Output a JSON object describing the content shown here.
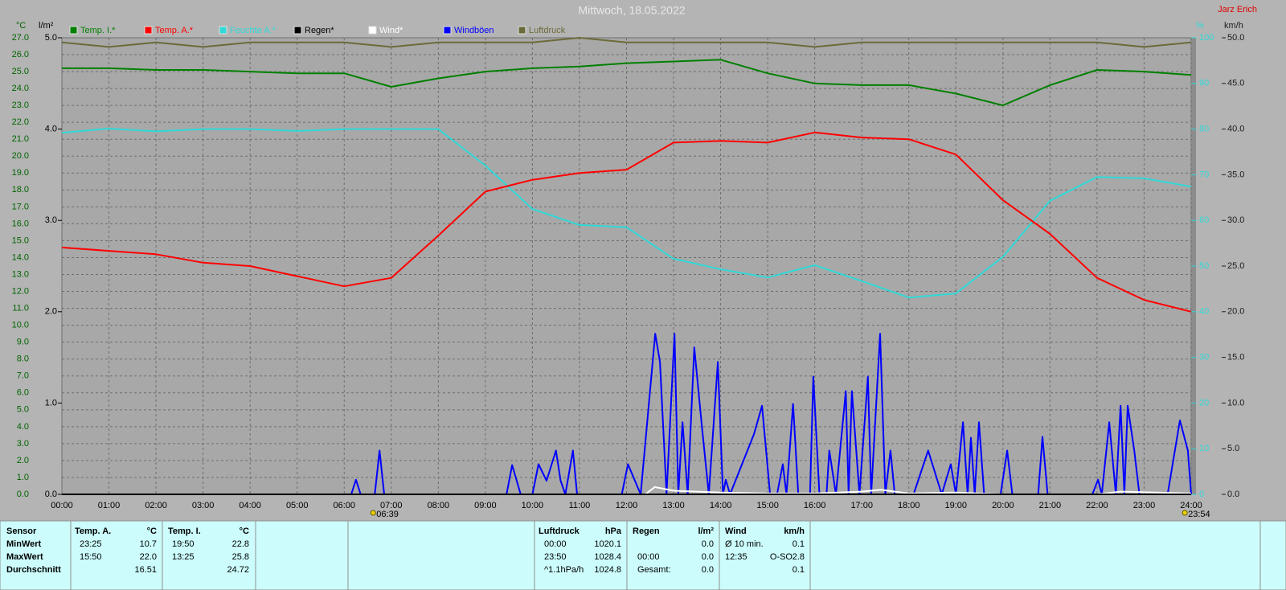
{
  "chart_data": {
    "type": "line",
    "title": "Mittwoch, 18.05.2022",
    "author": "Jarz Erich",
    "y_label": "°C",
    "y3_label": "l/m²",
    "y2_label": "%",
    "y4_label": "km/h",
    "xlim": [
      0,
      24
    ],
    "xticks": [
      {
        "value": 0,
        "label": "00:00"
      },
      {
        "value": 1,
        "label": "01:00"
      },
      {
        "value": 2,
        "label": "02:00"
      },
      {
        "value": 3,
        "label": "03:00"
      },
      {
        "value": 4,
        "label": "04:00"
      },
      {
        "value": 5,
        "label": "05:00"
      },
      {
        "value": 6,
        "label": "06:00"
      },
      {
        "value": 7,
        "label": "07:00"
      },
      {
        "value": 8,
        "label": "08:00"
      },
      {
        "value": 9,
        "label": "09:00"
      },
      {
        "value": 10,
        "label": "10:00"
      },
      {
        "value": 11,
        "label": "11:00"
      },
      {
        "value": 12,
        "label": "12:00"
      },
      {
        "value": 13,
        "label": "13:00"
      },
      {
        "value": 14,
        "label": "14:00"
      },
      {
        "value": 15,
        "label": "15:00"
      },
      {
        "value": 16,
        "label": "16:00"
      },
      {
        "value": 17,
        "label": "17:00"
      },
      {
        "value": 18,
        "label": "18:00"
      },
      {
        "value": 19,
        "label": "19:00"
      },
      {
        "value": 20,
        "label": "20:00"
      },
      {
        "value": 21,
        "label": "21:00"
      },
      {
        "value": 22,
        "label": "22:00"
      },
      {
        "value": 23,
        "label": "23:00"
      },
      {
        "value": 24,
        "label": "24:00"
      }
    ],
    "ylim": [
      0,
      27
    ],
    "yticks": [
      {
        "value": 0,
        "label": "0.0"
      },
      {
        "value": 1,
        "label": "1.0"
      },
      {
        "value": 2,
        "label": "2.0"
      },
      {
        "value": 3,
        "label": "3.0"
      },
      {
        "value": 4,
        "label": "4.0"
      },
      {
        "value": 5,
        "label": "5.0"
      },
      {
        "value": 6,
        "label": "6.0"
      },
      {
        "value": 7,
        "label": "7.0"
      },
      {
        "value": 8,
        "label": "8.0"
      },
      {
        "value": 9,
        "label": "9.0"
      },
      {
        "value": 10,
        "label": "10.0"
      },
      {
        "value": 11,
        "label": "11.0"
      },
      {
        "value": 12,
        "label": "12.0"
      },
      {
        "value": 13,
        "label": "13.0"
      },
      {
        "value": 14,
        "label": "14.0"
      },
      {
        "value": 15,
        "label": "15.0"
      },
      {
        "value": 16,
        "label": "16.0"
      },
      {
        "value": 17,
        "label": "17.0"
      },
      {
        "value": 18,
        "label": "18.0"
      },
      {
        "value": 19,
        "label": "19.0"
      },
      {
        "value": 20,
        "label": "20.0"
      },
      {
        "value": 21,
        "label": "21.0"
      },
      {
        "value": 22,
        "label": "22.0"
      },
      {
        "value": 23,
        "label": "23.0"
      },
      {
        "value": 24,
        "label": "24.0"
      },
      {
        "value": 25,
        "label": "25.0"
      },
      {
        "value": 26,
        "label": "26.0"
      },
      {
        "value": 27,
        "label": "27.0"
      }
    ],
    "y3lim": [
      0,
      5
    ],
    "y3ticks": [
      {
        "value": 0,
        "label": "0.0"
      },
      {
        "value": 1,
        "label": "1.0"
      },
      {
        "value": 2,
        "label": "2.0"
      },
      {
        "value": 3,
        "label": "3.0"
      },
      {
        "value": 4,
        "label": "4.0"
      },
      {
        "value": 5,
        "label": "5.0"
      }
    ],
    "y2lim": [
      0,
      100
    ],
    "y2ticks": [
      0,
      10,
      20,
      30,
      40,
      50,
      60,
      70,
      80,
      90,
      100
    ],
    "y4lim": [
      0,
      50
    ],
    "y4ticks": [
      {
        "value": 0,
        "label": "0.0"
      },
      {
        "value": 5,
        "label": "5.0"
      },
      {
        "value": 10,
        "label": "10.0"
      },
      {
        "value": 15,
        "label": "15.0"
      },
      {
        "value": 20,
        "label": "20.0"
      },
      {
        "value": 25,
        "label": "25.0"
      },
      {
        "value": 30,
        "label": "30.0"
      },
      {
        "value": 35,
        "label": "35.0"
      },
      {
        "value": 40,
        "label": "40.0"
      },
      {
        "value": 45,
        "label": "45.0"
      },
      {
        "value": 50,
        "label": "50.0"
      }
    ],
    "grid": true,
    "x": [
      0,
      1,
      2,
      3,
      4,
      5,
      6,
      7,
      8,
      9,
      10,
      11,
      12,
      13,
      14,
      15,
      16,
      17,
      18,
      19,
      20,
      21,
      22,
      23,
      24
    ],
    "series": [
      {
        "name": "Temp. I.*",
        "color": "#008000",
        "axis": "y",
        "values": [
          25.2,
          25.2,
          25.1,
          25.1,
          25.0,
          24.9,
          24.9,
          24.1,
          24.6,
          25.0,
          25.2,
          25.3,
          25.5,
          25.6,
          25.7,
          24.9,
          24.3,
          24.2,
          24.2,
          23.7,
          23.0,
          24.2,
          25.1,
          25.0,
          24.8
        ]
      },
      {
        "name": "Temp. A.*",
        "color": "#ff0000",
        "axis": "y",
        "values": [
          14.6,
          14.4,
          14.2,
          13.7,
          13.5,
          12.9,
          12.3,
          12.8,
          15.3,
          17.9,
          18.6,
          19.0,
          19.2,
          20.8,
          20.9,
          20.8,
          21.4,
          21.1,
          21.0,
          20.1,
          17.4,
          15.4,
          12.8,
          11.5,
          10.8
        ]
      },
      {
        "name": "Feuchte A.*",
        "color": "#30d8d8",
        "axis": "y2",
        "values": [
          79.2,
          80.1,
          79.5,
          80,
          80,
          79.6,
          80,
          80,
          80,
          72,
          62.5,
          59,
          58.5,
          51.6,
          49.3,
          47.5,
          50.2,
          46.7,
          43.1,
          44,
          52,
          64.3,
          69.5,
          69.2,
          67.4
        ]
      },
      {
        "name": "Regen*",
        "color": "#000000",
        "axis": "y3",
        "x": [
          0,
          24
        ],
        "values": [
          0,
          0
        ]
      },
      {
        "name": "Wind*",
        "color": "#ffffff",
        "axis": "y4",
        "x": [
          0,
          12.4,
          12.6,
          13.0,
          13.5,
          14.0,
          15.0,
          16.0,
          17.0,
          17.4,
          18.0,
          19.0,
          20.0,
          22.0,
          22.5,
          24
        ],
        "values": [
          0,
          0,
          0.8,
          0.4,
          0.3,
          0.2,
          0.1,
          0.1,
          0.3,
          0.5,
          0.1,
          0.2,
          0,
          0,
          0.3,
          0.1
        ]
      },
      {
        "name": "Windböen",
        "color": "#0000ff",
        "axis": "y4",
        "x": [
          0,
          6.15,
          6.25,
          6.35,
          6.65,
          6.75,
          6.85,
          9.45,
          9.57,
          9.75,
          10.0,
          10.13,
          10.3,
          10.5,
          10.6,
          10.7,
          10.86,
          10.95,
          11.9,
          12.03,
          12.3,
          12.61,
          12.71,
          12.85,
          13.02,
          13.1,
          13.19,
          13.3,
          13.44,
          13.6,
          13.75,
          13.94,
          14.05,
          14.11,
          14.2,
          14.71,
          14.88,
          15.05,
          15.2,
          15.32,
          15.4,
          15.54,
          15.65,
          15.9,
          15.97,
          16.1,
          16.25,
          16.31,
          16.45,
          16.66,
          16.72,
          16.79,
          16.95,
          17.13,
          17.2,
          17.39,
          17.5,
          17.61,
          17.7,
          18.1,
          18.41,
          18.7,
          18.89,
          19.0,
          19.15,
          19.25,
          19.32,
          19.4,
          19.49,
          19.6,
          19.95,
          20.09,
          20.2,
          20.75,
          20.84,
          20.95,
          21.9,
          22.02,
          22.1,
          22.26,
          22.4,
          22.5,
          22.58,
          22.65,
          22.79,
          22.9,
          23.5,
          23.76,
          23.93,
          24.0
        ],
        "values": [
          0,
          0,
          1.6,
          0,
          0,
          4.8,
          0,
          0,
          3.2,
          0,
          0,
          3.3,
          1.5,
          4.8,
          1.5,
          0,
          4.8,
          0,
          0,
          3.3,
          0,
          17.6,
          14.5,
          0,
          17.6,
          0,
          7.9,
          0,
          16.1,
          7.5,
          0,
          14.5,
          0,
          1.6,
          0,
          6.6,
          9.7,
          0,
          0,
          3.3,
          0,
          9.9,
          0,
          0,
          12.9,
          0,
          0,
          4.8,
          0,
          11.3,
          0,
          11.3,
          0,
          12.9,
          0,
          17.6,
          0,
          4.8,
          0,
          0,
          4.8,
          0,
          3.3,
          0,
          7.9,
          0,
          6.2,
          0,
          7.9,
          0,
          0,
          4.8,
          0,
          0,
          6.3,
          0,
          0,
          1.6,
          0,
          7.9,
          0,
          9.7,
          0,
          9.7,
          4.8,
          0,
          0,
          8.1,
          4.8,
          0
        ]
      },
      {
        "name": "Luftdruck",
        "color": "#6b6b3a",
        "axis": "y2",
        "values": [
          99,
          98,
          99,
          98,
          99,
          99,
          99,
          98,
          99,
          99,
          99,
          100,
          99,
          99,
          99,
          99,
          98,
          99,
          99,
          99,
          99,
          99,
          99,
          98,
          99
        ]
      }
    ],
    "annotations": [
      {
        "x": 6.65,
        "label": "06:39"
      },
      {
        "x": 23.9,
        "label": "23:54"
      }
    ]
  },
  "summary": {
    "panels": [
      {
        "headers": [
          "Sensor",
          "Temp. A.",
          "°C",
          "Temp. I.",
          "°C"
        ],
        "rows": [
          [
            "MinWert",
            "23:25",
            "10.7",
            "19:50",
            "22.8"
          ],
          [
            "MaxWert",
            "15:50",
            "22.0",
            "13:25",
            "25.8"
          ],
          [
            "Durchschnitt",
            null,
            "16.51",
            null,
            "24.72"
          ]
        ]
      },
      {
        "headers": [
          "Luftdruck",
          "hPa"
        ],
        "rows": [
          [
            "00:00",
            "1020.1"
          ],
          [
            "23:50",
            "1028.4"
          ],
          [
            "^1.1hPa/h",
            "1024.8"
          ]
        ]
      },
      {
        "headers": [
          "Regen",
          "l/m²"
        ],
        "rows": [
          [
            null,
            "0.0"
          ],
          [
            "00:00",
            "0.0"
          ],
          [
            "Gesamt:",
            "0.0"
          ]
        ]
      },
      {
        "headers": [
          "Wind",
          null,
          "km/h"
        ],
        "rows": [
          [
            "Ø 10 min.",
            null,
            "0.1"
          ],
          [
            "12:35",
            "O-SO",
            "2.8"
          ],
          [
            null,
            null,
            "0.1"
          ]
        ]
      }
    ]
  }
}
